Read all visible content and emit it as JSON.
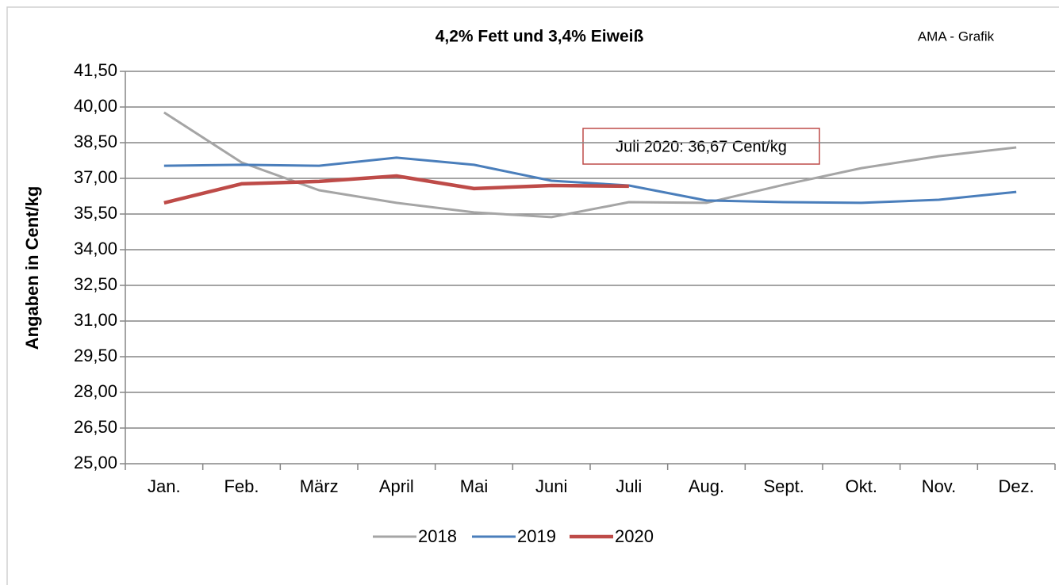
{
  "chart_data": {
    "type": "line",
    "title": "4,2% Fett und 3,4% Eiweiß",
    "source": "AMA - Grafik",
    "y_label": "Angaben in Cent/kg",
    "annotation": "Juli 2020: 36,67 Cent/kg",
    "categories": [
      "Jan.",
      "Feb.",
      "März",
      "April",
      "Mai",
      "Juni",
      "Juli",
      "Aug.",
      "Sept.",
      "Okt.",
      "Nov.",
      "Dez."
    ],
    "series": [
      {
        "name": "2018",
        "color": "#a5a5a5",
        "width": 3,
        "values": [
          39.77,
          37.67,
          36.5,
          35.97,
          35.57,
          35.37,
          36.0,
          35.97,
          36.73,
          37.43,
          37.93,
          38.3
        ]
      },
      {
        "name": "2019",
        "color": "#4a7ebb",
        "width": 3,
        "values": [
          37.53,
          37.57,
          37.53,
          37.87,
          37.57,
          36.9,
          36.7,
          36.07,
          36.0,
          35.97,
          36.1,
          36.43
        ]
      },
      {
        "name": "2020",
        "color": "#be4b48",
        "width": 4.5,
        "values": [
          35.97,
          36.77,
          36.87,
          37.1,
          36.57,
          36.7,
          36.67,
          null,
          null,
          null,
          null,
          null
        ]
      }
    ],
    "ylim": [
      25,
      41.5
    ],
    "yticks": [
      {
        "value": 25,
        "label": "25,00"
      },
      {
        "value": 26.5,
        "label": "26,50"
      },
      {
        "value": 28,
        "label": "28,00"
      },
      {
        "value": 29.5,
        "label": "29,50"
      },
      {
        "value": 31,
        "label": "31,00"
      },
      {
        "value": 32.5,
        "label": "32,50"
      },
      {
        "value": 34,
        "label": "34,00"
      },
      {
        "value": 35.5,
        "label": "35,50"
      },
      {
        "value": 37,
        "label": "37,00"
      },
      {
        "value": 38.5,
        "label": "38,50"
      },
      {
        "value": 40,
        "label": "40,00"
      },
      {
        "value": 41.5,
        "label": "41,50"
      }
    ],
    "grid": true,
    "legend": "bottom"
  }
}
